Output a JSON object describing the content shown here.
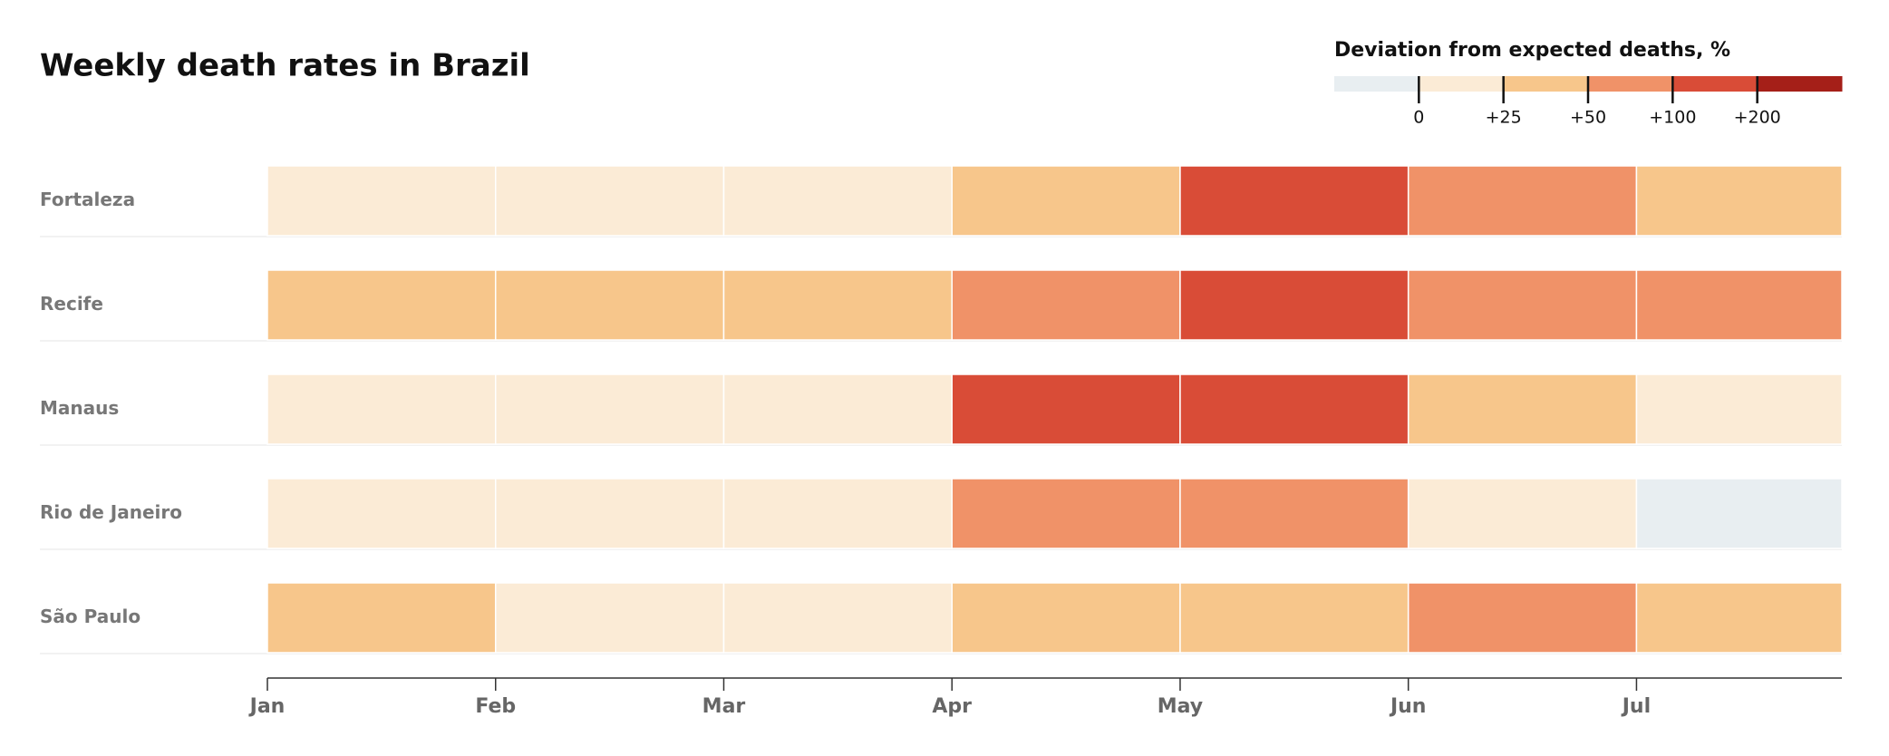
{
  "chart_data": {
    "type": "heatmap",
    "title": "Weekly death rates in Brazil",
    "categories": [
      "Jan",
      "Feb",
      "Mar",
      "Apr",
      "May",
      "Jun",
      "Jul"
    ],
    "series": [
      {
        "name": "Fortaleza",
        "values": [
          10,
          10,
          10,
          35,
          150,
          75,
          35
        ]
      },
      {
        "name": "Recife",
        "values": [
          35,
          35,
          35,
          75,
          150,
          75,
          75
        ]
      },
      {
        "name": "Manaus",
        "values": [
          10,
          10,
          10,
          150,
          150,
          35,
          10
        ]
      },
      {
        "name": "Rio de Janeiro",
        "values": [
          10,
          10,
          10,
          75,
          75,
          10,
          -5
        ]
      },
      {
        "name": "São Paulo",
        "values": [
          35,
          10,
          10,
          35,
          35,
          75,
          35
        ]
      }
    ],
    "legend": {
      "title": "Deviation from expected deaths, %",
      "ticks": [
        {
          "value": 0,
          "label": "0"
        },
        {
          "value": 25,
          "label": "+25"
        },
        {
          "value": 50,
          "label": "+50"
        },
        {
          "value": 100,
          "label": "+100"
        },
        {
          "value": 200,
          "label": "+200"
        }
      ],
      "colors": [
        "#e8eef1",
        "#fbebd6",
        "#f7c68b",
        "#f09268",
        "#d94c37",
        "#a51f18"
      ]
    }
  }
}
